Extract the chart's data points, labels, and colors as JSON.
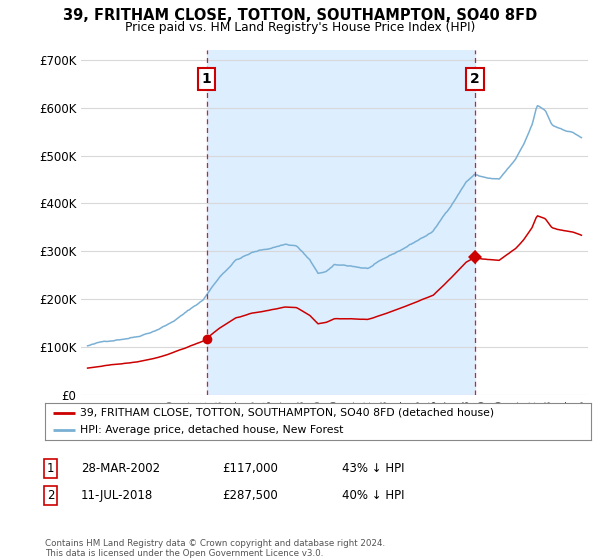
{
  "title": "39, FRITHAM CLOSE, TOTTON, SOUTHAMPTON, SO40 8FD",
  "subtitle": "Price paid vs. HM Land Registry's House Price Index (HPI)",
  "background_color": "#ffffff",
  "plot_bg_color": "#ffffff",
  "grid_color": "#d8d8d8",
  "shade_color": "#ddeeff",
  "y_ticks": [
    0,
    100000,
    200000,
    300000,
    400000,
    500000,
    600000,
    700000
  ],
  "y_tick_labels": [
    "£0",
    "£100K",
    "£200K",
    "£300K",
    "£400K",
    "£500K",
    "£600K",
    "£700K"
  ],
  "x_start_year": 1995,
  "x_end_year": 2025,
  "sale1_date": 2002.23,
  "sale1_price": 117000,
  "sale2_date": 2018.53,
  "sale2_price": 287500,
  "property_line_color": "#cc0000",
  "hpi_line_color": "#7ab0d4",
  "legend_property": "39, FRITHAM CLOSE, TOTTON, SOUTHAMPTON, SO40 8FD (detached house)",
  "legend_hpi": "HPI: Average price, detached house, New Forest",
  "footer": "Contains HM Land Registry data © Crown copyright and database right 2024.\nThis data is licensed under the Open Government Licence v3.0."
}
